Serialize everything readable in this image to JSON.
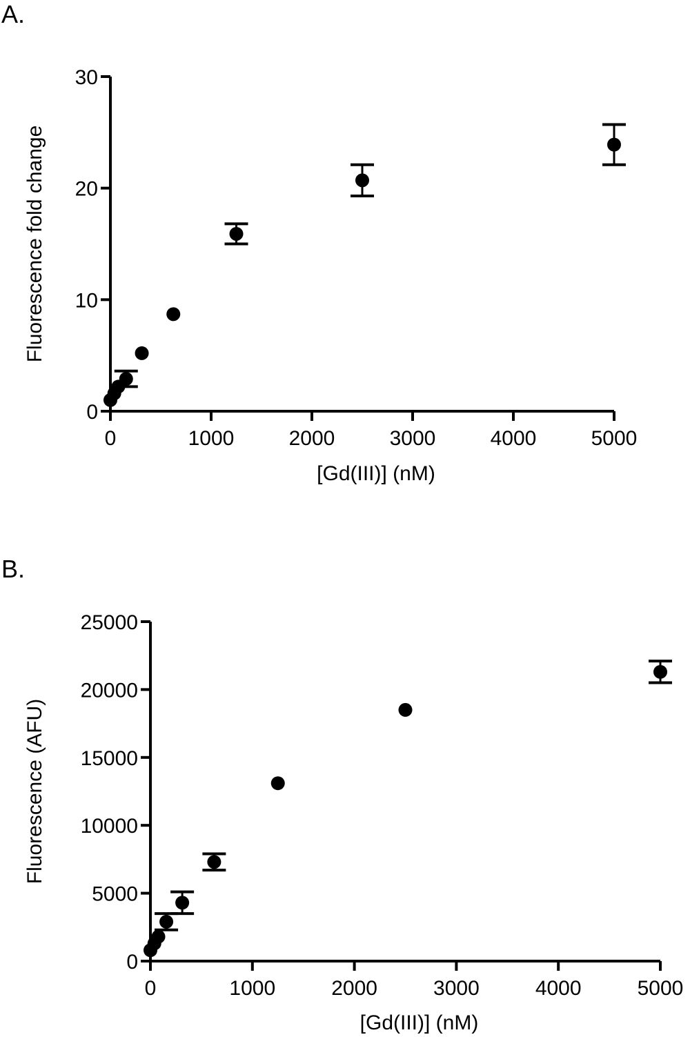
{
  "panels": {
    "a_label": "A.",
    "b_label": "B."
  },
  "chart_data": [
    {
      "type": "scatter",
      "panel": "A.",
      "xlabel": "[Gd(III)] (nM)",
      "ylabel": "Fluorescence fold change",
      "xlim": [
        0,
        5000
      ],
      "ylim": [
        0,
        30
      ],
      "xticks": [
        "0",
        "1000",
        "2000",
        "3000",
        "4000",
        "5000"
      ],
      "yticks": [
        "0",
        "10",
        "20",
        "30"
      ],
      "xtick_values": [
        0,
        1000,
        2000,
        3000,
        4000,
        5000
      ],
      "ytick_values": [
        0,
        10,
        20,
        30
      ],
      "grid": false,
      "points": [
        {
          "x": 0,
          "y": 1.0,
          "err": 0
        },
        {
          "x": 39,
          "y": 1.6,
          "err": 0
        },
        {
          "x": 78,
          "y": 2.2,
          "err": 0
        },
        {
          "x": 156,
          "y": 2.9,
          "err": 0.7
        },
        {
          "x": 312,
          "y": 5.2,
          "err": 0
        },
        {
          "x": 625,
          "y": 8.7,
          "err": 0
        },
        {
          "x": 1250,
          "y": 15.9,
          "err": 0.9
        },
        {
          "x": 2500,
          "y": 20.7,
          "err": 1.4
        },
        {
          "x": 5000,
          "y": 23.9,
          "err": 1.8
        }
      ],
      "color": "#000000"
    },
    {
      "type": "scatter",
      "panel": "B.",
      "xlabel": "[Gd(III)] (nM)",
      "ylabel": "Fluorescence (AFU)",
      "xlim": [
        0,
        5000
      ],
      "ylim": [
        0,
        25000
      ],
      "xticks": [
        "0",
        "1000",
        "2000",
        "3000",
        "4000",
        "5000"
      ],
      "yticks": [
        "0",
        "5000",
        "10000",
        "15000",
        "20000",
        "25000"
      ],
      "xtick_values": [
        0,
        1000,
        2000,
        3000,
        4000,
        5000
      ],
      "ytick_values": [
        0,
        5000,
        10000,
        15000,
        20000,
        25000
      ],
      "grid": false,
      "points": [
        {
          "x": 0,
          "y": 800,
          "err": 0
        },
        {
          "x": 39,
          "y": 1300,
          "err": 0
        },
        {
          "x": 78,
          "y": 1800,
          "err": 0
        },
        {
          "x": 156,
          "y": 2900,
          "err": 600
        },
        {
          "x": 312,
          "y": 4300,
          "err": 800
        },
        {
          "x": 625,
          "y": 7300,
          "err": 600
        },
        {
          "x": 1250,
          "y": 13100,
          "err": 0
        },
        {
          "x": 2500,
          "y": 18500,
          "err": 0
        },
        {
          "x": 5000,
          "y": 21300,
          "err": 800
        }
      ],
      "color": "#000000"
    }
  ]
}
